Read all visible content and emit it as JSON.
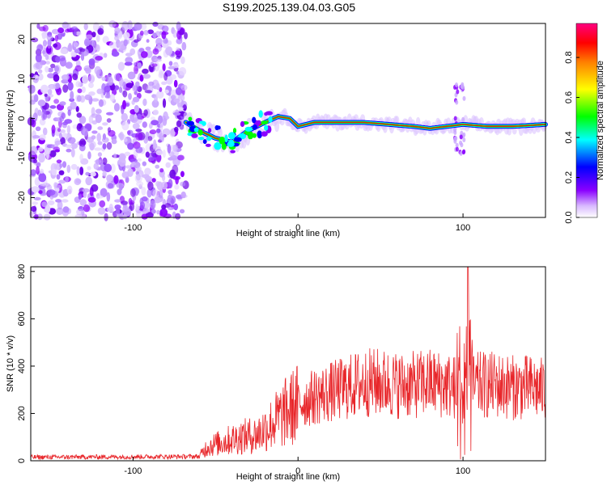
{
  "title": "S199.2025.139.04.03.G05",
  "chart_data": [
    {
      "type": "heatmap",
      "xlabel": "Height of straight line (km)",
      "ylabel": "Frequency (Hz)",
      "xlim": [
        -162,
        150
      ],
      "ylim": [
        -25,
        24
      ],
      "xticks": [
        -100,
        0,
        100
      ],
      "yticks": [
        20,
        10,
        0,
        -10,
        -20
      ],
      "colorbar": {
        "label": "Normalized spectral amplitude",
        "ticks": [
          "0.0",
          "0.2",
          "0.4",
          "0.6",
          "0.8"
        ],
        "range": [
          0,
          0.97
        ],
        "colors": [
          "#ffffff",
          "#8a00ff",
          "#0000ff",
          "#00ffff",
          "#00ff00",
          "#ffff00",
          "#ff0000",
          "#ff0080"
        ]
      },
      "regions": [
        {
          "name": "noise",
          "x": [
            -162,
            -68
          ],
          "freq": [
            -25,
            24
          ],
          "amplitude": 0.25
        },
        {
          "name": "signal",
          "track": [
            {
              "x": -68,
              "f": -1
            },
            {
              "x": -60,
              "f": -3
            },
            {
              "x": -50,
              "f": -5
            },
            {
              "x": -40,
              "f": -6
            },
            {
              "x": -30,
              "f": -3
            },
            {
              "x": -20,
              "f": -1
            },
            {
              "x": -12,
              "f": 0.5
            },
            {
              "x": -5,
              "f": 0
            },
            {
              "x": 0,
              "f": -2
            },
            {
              "x": 10,
              "f": -1
            },
            {
              "x": 25,
              "f": -1
            },
            {
              "x": 40,
              "f": -1
            },
            {
              "x": 55,
              "f": -1.5
            },
            {
              "x": 70,
              "f": -2
            },
            {
              "x": 80,
              "f": -2.5
            },
            {
              "x": 90,
              "f": -2
            },
            {
              "x": 100,
              "f": -1.5
            },
            {
              "x": 115,
              "f": -2
            },
            {
              "x": 130,
              "f": -2
            },
            {
              "x": 150,
              "f": -1.5
            }
          ]
        }
      ]
    },
    {
      "type": "line",
      "xlabel": "Height of straight line (km)",
      "ylabel": "SNR (10 * v/v)",
      "xlim": [
        -162,
        150
      ],
      "ylim": [
        0,
        820
      ],
      "xticks": [
        -100,
        0,
        100
      ],
      "yticks": [
        0,
        200,
        400,
        600,
        800
      ],
      "color": "#e8262a",
      "envelope": [
        {
          "x": -162,
          "y": 15
        },
        {
          "x": -60,
          "y": 18
        },
        {
          "x": -55,
          "y": 60
        },
        {
          "x": -45,
          "y": 80
        },
        {
          "x": -35,
          "y": 100
        },
        {
          "x": -25,
          "y": 110
        },
        {
          "x": -17,
          "y": 150
        },
        {
          "x": -10,
          "y": 190
        },
        {
          "x": 0,
          "y": 240
        },
        {
          "x": 10,
          "y": 270
        },
        {
          "x": 20,
          "y": 290
        },
        {
          "x": 30,
          "y": 310
        },
        {
          "x": 40,
          "y": 330
        },
        {
          "x": 50,
          "y": 330
        },
        {
          "x": 60,
          "y": 320
        },
        {
          "x": 70,
          "y": 320
        },
        {
          "x": 80,
          "y": 330
        },
        {
          "x": 90,
          "y": 320
        },
        {
          "x": 100,
          "y": 300
        },
        {
          "x": 110,
          "y": 320
        },
        {
          "x": 120,
          "y": 320
        },
        {
          "x": 130,
          "y": 310
        },
        {
          "x": 140,
          "y": 310
        },
        {
          "x": 150,
          "y": 300
        }
      ],
      "peak": {
        "x": 103,
        "y": 830
      }
    }
  ]
}
